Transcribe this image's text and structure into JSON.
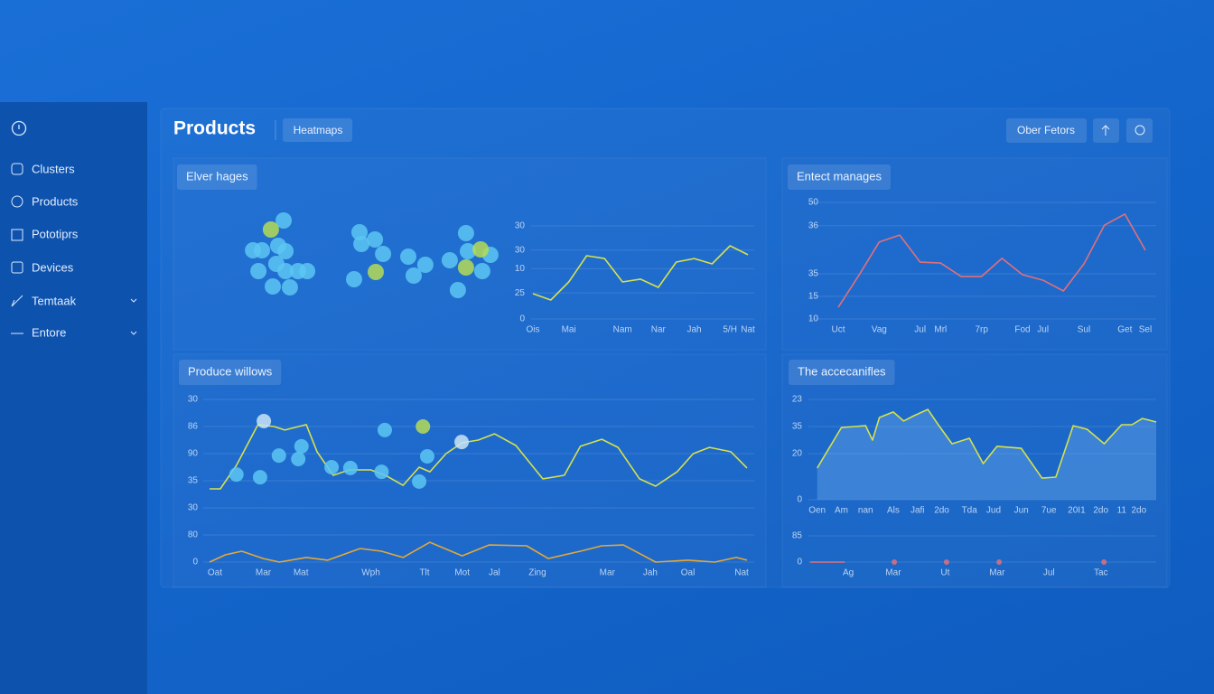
{
  "sidebar": {
    "items": [
      "Clusters",
      "Products",
      "Pototiprs",
      "Devices",
      "Temtaak",
      "Entore"
    ]
  },
  "header": {
    "title": "Products",
    "tab": "Heatmaps",
    "button": "Ober Fetors"
  },
  "chart_data": [
    {
      "type": "scatter",
      "title": "Elver hages",
      "xlim": [
        0,
        100
      ],
      "ylim": [
        0,
        100
      ],
      "series": [
        {
          "color": "#5cc6f2",
          "x": [
            18,
            6.7,
            10,
            16,
            18.7,
            15.3,
            8.7,
            18.7,
            23.3,
            26.7,
            14,
            20.3,
            46,
            46.7,
            51.7,
            54.7,
            44,
            64,
            66,
            70.3,
            79.3,
            85.3,
            86,
            94.3,
            91.3,
            82.3
          ],
          "values": [
            86,
            53,
            53,
            58,
            52,
            38,
            30,
            30,
            30,
            30,
            13,
            12,
            73,
            60,
            65,
            49,
            21,
            46,
            25,
            37,
            42,
            72,
            52,
            48,
            30,
            9
          ]
        },
        {
          "color": "#b5dc55",
          "x": [
            13.3,
            52,
            90.7,
            85.3
          ],
          "values": [
            76,
            29,
            54,
            34
          ]
        }
      ]
    },
    {
      "type": "line",
      "categories": [
        "Ois",
        null,
        "Mai",
        null,
        null,
        "Nam",
        null,
        "Nar",
        null,
        "Jah",
        null,
        "5/H",
        "Nat"
      ],
      "ylim": [
        0,
        50
      ],
      "yticks": [
        {
          "value": 50,
          "label": "30"
        },
        {
          "value": 37,
          "label": "30"
        },
        {
          "value": 27,
          "label": "10"
        },
        {
          "value": 14,
          "label": "25"
        },
        0
      ],
      "grid": true,
      "series": [
        {
          "color": "#d6e14c",
          "values": [
            13.6,
            10.2,
            19.9,
            34,
            32.5,
            19.9,
            21.4,
            17,
            30.6,
            32.5,
            29.6,
            39.3,
            34.5
          ]
        }
      ]
    },
    {
      "type": "line",
      "title": "Entect manages",
      "categories": [
        "Uct",
        null,
        "Vag",
        null,
        "Jul",
        "Mrl",
        null,
        "7rp",
        null,
        "Fod",
        "Jul",
        null,
        "Sul",
        null,
        "Get",
        "Sel"
      ],
      "ylim": [
        10,
        50
      ],
      "yticks": [
        50,
        {
          "value": 42,
          "label": "36"
        },
        {
          "value": 25.5,
          "label": "35"
        },
        {
          "value": 17.8,
          "label": "15"
        },
        10
      ],
      "grid": true,
      "series": [
        {
          "color": "#e0707a",
          "values": [
            14,
            24.9,
            36.4,
            38.8,
            29.5,
            29.2,
            24.6,
            24.6,
            30.8,
            25.2,
            23.3,
            19.6,
            28.9,
            42.2,
            46,
            33.6
          ]
        }
      ]
    },
    {
      "type": "line",
      "title": "Produce willows",
      "xlim": [
        0,
        100
      ],
      "xticks": [
        {
          "value": 1,
          "label": "Oat"
        },
        {
          "value": 10,
          "label": "Mar"
        },
        {
          "value": 17,
          "label": "Mat"
        },
        {
          "value": 30,
          "label": "Wph"
        },
        {
          "value": 40,
          "label": "Tlt"
        },
        {
          "value": 47,
          "label": "Mot"
        },
        {
          "value": 53,
          "label": "Jal"
        },
        {
          "value": 61,
          "label": "Zing"
        },
        {
          "value": 74,
          "label": "Mar"
        },
        {
          "value": 82,
          "label": "Jah"
        },
        {
          "value": 89,
          "label": "Oal"
        },
        {
          "value": 99,
          "label": "Nat"
        }
      ],
      "ylim": [
        0,
        60
      ],
      "yticks": [
        {
          "value": 60,
          "label": "30"
        },
        {
          "value": 50,
          "label": "86"
        },
        {
          "value": 40,
          "label": "90"
        },
        {
          "value": 30,
          "label": "35"
        },
        {
          "value": 20,
          "label": "30"
        },
        {
          "value": 10,
          "label": "80"
        },
        0
      ],
      "grid": true,
      "series": [
        {
          "color": "#d6e14c",
          "x": [
            0,
            2,
            5,
            9,
            12,
            14,
            18,
            20,
            23,
            26,
            30,
            33,
            36,
            39,
            41,
            44,
            47,
            50,
            53,
            57,
            62,
            66,
            69,
            73,
            76,
            80,
            83,
            87,
            90,
            93,
            97,
            100
          ],
          "values": [
            27,
            27,
            35.7,
            50.7,
            50,
            48.7,
            50.7,
            40.7,
            32,
            34,
            34,
            31.7,
            28.3,
            35,
            33.3,
            40,
            44,
            45,
            47.3,
            43,
            30.7,
            32,
            42.7,
            45.3,
            42.3,
            30.7,
            28,
            33.3,
            40,
            42.3,
            40.7,
            34.7
          ]
        },
        {
          "color": "#e3a83a",
          "x": [
            0,
            3,
            6,
            10,
            13,
            18,
            22,
            28,
            32,
            36,
            41,
            47,
            52,
            59,
            63,
            69,
            73,
            77,
            83,
            89,
            94,
            98,
            100
          ],
          "values": [
            0,
            2.7,
            4,
            1.3,
            0,
            1.7,
            0.7,
            5,
            4,
            1.7,
            7.3,
            2.3,
            6.3,
            6,
            1.3,
            4,
            6,
            6.3,
            0,
            0.7,
            0,
            1.7,
            0.7
          ]
        },
        {
          "type": "scatter",
          "color": "#5cc6f2",
          "x": [
            5,
            9.4,
            12.9,
            16.5,
            17.1,
            22.7,
            26.2,
            32,
            32.6,
            39,
            40.5
          ],
          "values": [
            32.3,
            31.3,
            39.3,
            38,
            42.7,
            35,
            34.7,
            33.3,
            48.7,
            29.7,
            39
          ]
        },
        {
          "type": "scatter",
          "color": "#c9e4f7",
          "x": [
            10.1,
            46.9
          ],
          "values": [
            52,
            44.3
          ]
        },
        {
          "type": "scatter",
          "color": "#b5dc55",
          "x": [
            39.7
          ],
          "values": [
            50
          ]
        }
      ]
    },
    {
      "type": "area",
      "title": "The accecanifles",
      "xlim": [
        0,
        100
      ],
      "xticks": [
        {
          "value": 2,
          "label": "Oen"
        },
        {
          "value": 9,
          "label": "Am"
        },
        {
          "value": 16,
          "label": "nan"
        },
        {
          "value": 24,
          "label": "Als"
        },
        {
          "value": 31,
          "label": "Jafi"
        },
        {
          "value": 38,
          "label": "2do"
        },
        {
          "value": 46,
          "label": "Tda"
        },
        {
          "value": 53,
          "label": "Jud"
        },
        {
          "value": 61,
          "label": "Jun"
        },
        {
          "value": 69,
          "label": "7ue"
        },
        {
          "value": 77,
          "label": "20I1"
        },
        {
          "value": 84,
          "label": "2do"
        },
        {
          "value": 90,
          "label": "11"
        },
        {
          "value": 95,
          "label": "2do"
        }
      ],
      "ylim": [
        0,
        40
      ],
      "yticks": [
        {
          "value": 40,
          "label": "23"
        },
        {
          "value": 29.2,
          "label": "35"
        },
        {
          "value": 18.4,
          "label": "20"
        },
        0
      ],
      "grid": true,
      "series": [
        {
          "color": "#d6e14c",
          "x": [
            2,
            9,
            13,
            16,
            18,
            20,
            24,
            27,
            30,
            34,
            37,
            41,
            46,
            50,
            54,
            61,
            67,
            71,
            76,
            80,
            85,
            90,
            93,
            96,
            100
          ],
          "values": [
            12.6,
            28.8,
            29.2,
            29.5,
            23.8,
            32.8,
            35,
            31.4,
            33.5,
            36,
            29.9,
            22.3,
            24.5,
            14.4,
            21.3,
            20.5,
            8.6,
            9,
            29.5,
            28.1,
            22.3,
            29.9,
            29.9,
            32.4,
            31
          ]
        }
      ]
    },
    {
      "type": "scatter",
      "xlim": [
        0,
        100
      ],
      "xticks": [
        {
          "value": 11,
          "label": "Ag"
        },
        {
          "value": 24,
          "label": "Mar"
        },
        {
          "value": 39,
          "label": "Ut"
        },
        {
          "value": 54,
          "label": "Mar"
        },
        {
          "value": 69,
          "label": "Jul"
        },
        {
          "value": 84,
          "label": "Tac"
        }
      ],
      "ylim": [
        0,
        10
      ],
      "yticks": [
        {
          "value": 10,
          "label": "85"
        },
        0
      ],
      "grid": true,
      "series": [
        {
          "type": "line",
          "color": "#e0707a",
          "x": [
            0,
            10
          ],
          "values": [
            0,
            0
          ]
        },
        {
          "color": "#e0707a",
          "x": [
            24.3,
            39.4,
            54.6,
            84.9
          ],
          "values": [
            0,
            0,
            0,
            0
          ]
        }
      ]
    }
  ]
}
